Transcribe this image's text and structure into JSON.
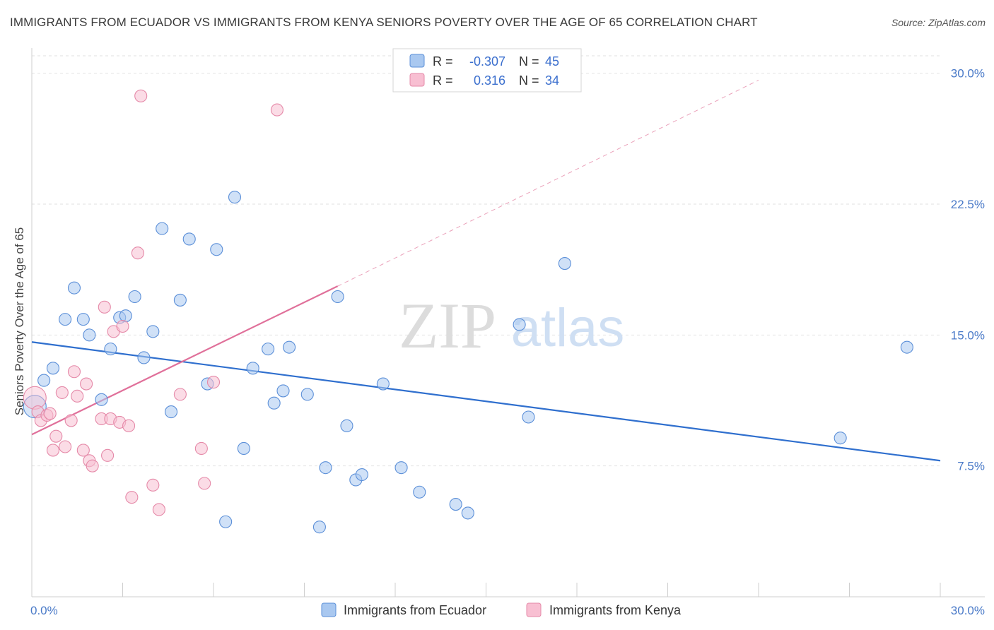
{
  "title": "IMMIGRANTS FROM ECUADOR VS IMMIGRANTS FROM KENYA SENIORS POVERTY OVER THE AGE OF 65 CORRELATION CHART",
  "source": "Source: ZipAtlas.com",
  "watermark": {
    "zip": "ZIP",
    "atlas": "atlas"
  },
  "colors": {
    "ecuador_fill": "#a9c8f0",
    "ecuador_stroke": "#5b8fd8",
    "ecuador_line": "#2f6fce",
    "kenya_fill": "#f8bfd2",
    "kenya_stroke": "#e589a8",
    "kenya_line": "#e0709a",
    "grid": "#e2e2e2",
    "axis_text": "#4a7ac8"
  },
  "legend": {
    "r_label": "R =",
    "n_label": "N =",
    "rows": [
      {
        "r": "-0.307",
        "n": "45"
      },
      {
        "r": "0.316",
        "n": "34"
      }
    ]
  },
  "chart_data": {
    "type": "scatter",
    "title": "IMMIGRANTS FROM ECUADOR VS IMMIGRANTS FROM KENYA SENIORS POVERTY OVER THE AGE OF 65 CORRELATION CHART",
    "xlabel": "",
    "ylabel": "Seniors Poverty Over the Age of 65",
    "xlim": [
      0,
      30
    ],
    "ylim": [
      0,
      31
    ],
    "x_tick_labels": [
      "0.0%",
      "30.0%"
    ],
    "y_ticks": [
      {
        "value": 7.5,
        "label": "7.5%"
      },
      {
        "value": 15.0,
        "label": "15.0%"
      },
      {
        "value": 22.5,
        "label": "22.5%"
      },
      {
        "value": 30.0,
        "label": "30.0%"
      }
    ],
    "grid": true,
    "legend_position": "top-center",
    "series": [
      {
        "name": "Immigrants from Ecuador",
        "r": -0.307,
        "n": 45,
        "trend": {
          "x": [
            0,
            30
          ],
          "y": [
            14.6,
            7.8
          ]
        },
        "points": [
          [
            0.1,
            10.9
          ],
          [
            0.4,
            12.4
          ],
          [
            0.7,
            13.1
          ],
          [
            1.1,
            15.9
          ],
          [
            1.4,
            17.7
          ],
          [
            1.7,
            15.9
          ],
          [
            1.9,
            15.0
          ],
          [
            2.3,
            11.3
          ],
          [
            2.6,
            14.2
          ],
          [
            2.9,
            16.0
          ],
          [
            3.1,
            16.1
          ],
          [
            3.4,
            17.2
          ],
          [
            3.7,
            13.7
          ],
          [
            4.0,
            15.2
          ],
          [
            4.3,
            21.1
          ],
          [
            4.6,
            10.6
          ],
          [
            4.9,
            17.0
          ],
          [
            5.2,
            20.5
          ],
          [
            5.8,
            12.2
          ],
          [
            6.1,
            19.9
          ],
          [
            6.4,
            4.3
          ],
          [
            6.7,
            22.9
          ],
          [
            7.0,
            8.5
          ],
          [
            7.3,
            13.1
          ],
          [
            7.8,
            14.2
          ],
          [
            8.0,
            11.1
          ],
          [
            8.3,
            11.8
          ],
          [
            8.5,
            14.3
          ],
          [
            9.1,
            11.6
          ],
          [
            9.5,
            4.0
          ],
          [
            9.7,
            7.4
          ],
          [
            10.1,
            17.2
          ],
          [
            10.4,
            9.8
          ],
          [
            10.7,
            6.7
          ],
          [
            10.9,
            7.0
          ],
          [
            11.6,
            12.2
          ],
          [
            12.2,
            7.4
          ],
          [
            12.8,
            6.0
          ],
          [
            14.0,
            5.3
          ],
          [
            14.4,
            4.8
          ],
          [
            16.1,
            15.6
          ],
          [
            16.4,
            10.3
          ],
          [
            17.6,
            19.1
          ],
          [
            26.7,
            9.1
          ],
          [
            28.9,
            14.3
          ]
        ]
      },
      {
        "name": "Immigrants from Kenya",
        "r": 0.316,
        "n": 34,
        "trend": {
          "x": [
            0,
            10.1
          ],
          "y": [
            9.3,
            17.8
          ]
        },
        "trend_extension": {
          "x": [
            10.1,
            24.0
          ],
          "y": [
            17.8,
            29.6
          ]
        },
        "points": [
          [
            0.1,
            11.4
          ],
          [
            0.2,
            10.6
          ],
          [
            0.3,
            10.1
          ],
          [
            0.5,
            10.4
          ],
          [
            0.6,
            10.5
          ],
          [
            0.7,
            8.4
          ],
          [
            0.8,
            9.2
          ],
          [
            1.0,
            11.7
          ],
          [
            1.1,
            8.6
          ],
          [
            1.3,
            10.1
          ],
          [
            1.4,
            12.9
          ],
          [
            1.5,
            11.5
          ],
          [
            1.7,
            8.4
          ],
          [
            1.8,
            12.2
          ],
          [
            1.9,
            7.8
          ],
          [
            2.0,
            7.5
          ],
          [
            2.3,
            10.2
          ],
          [
            2.4,
            16.6
          ],
          [
            2.5,
            8.1
          ],
          [
            2.6,
            10.2
          ],
          [
            2.7,
            15.2
          ],
          [
            2.9,
            10.0
          ],
          [
            3.0,
            15.5
          ],
          [
            3.2,
            9.8
          ],
          [
            3.3,
            5.7
          ],
          [
            3.5,
            19.7
          ],
          [
            3.6,
            28.7
          ],
          [
            4.0,
            6.4
          ],
          [
            4.2,
            5.0
          ],
          [
            4.9,
            11.6
          ],
          [
            5.6,
            8.5
          ],
          [
            5.7,
            6.5
          ],
          [
            6.0,
            12.3
          ],
          [
            8.1,
            27.9
          ]
        ]
      }
    ]
  },
  "bottom_legend": [
    {
      "label": "Immigrants from Ecuador"
    },
    {
      "label": "Immigrants from Kenya"
    }
  ]
}
